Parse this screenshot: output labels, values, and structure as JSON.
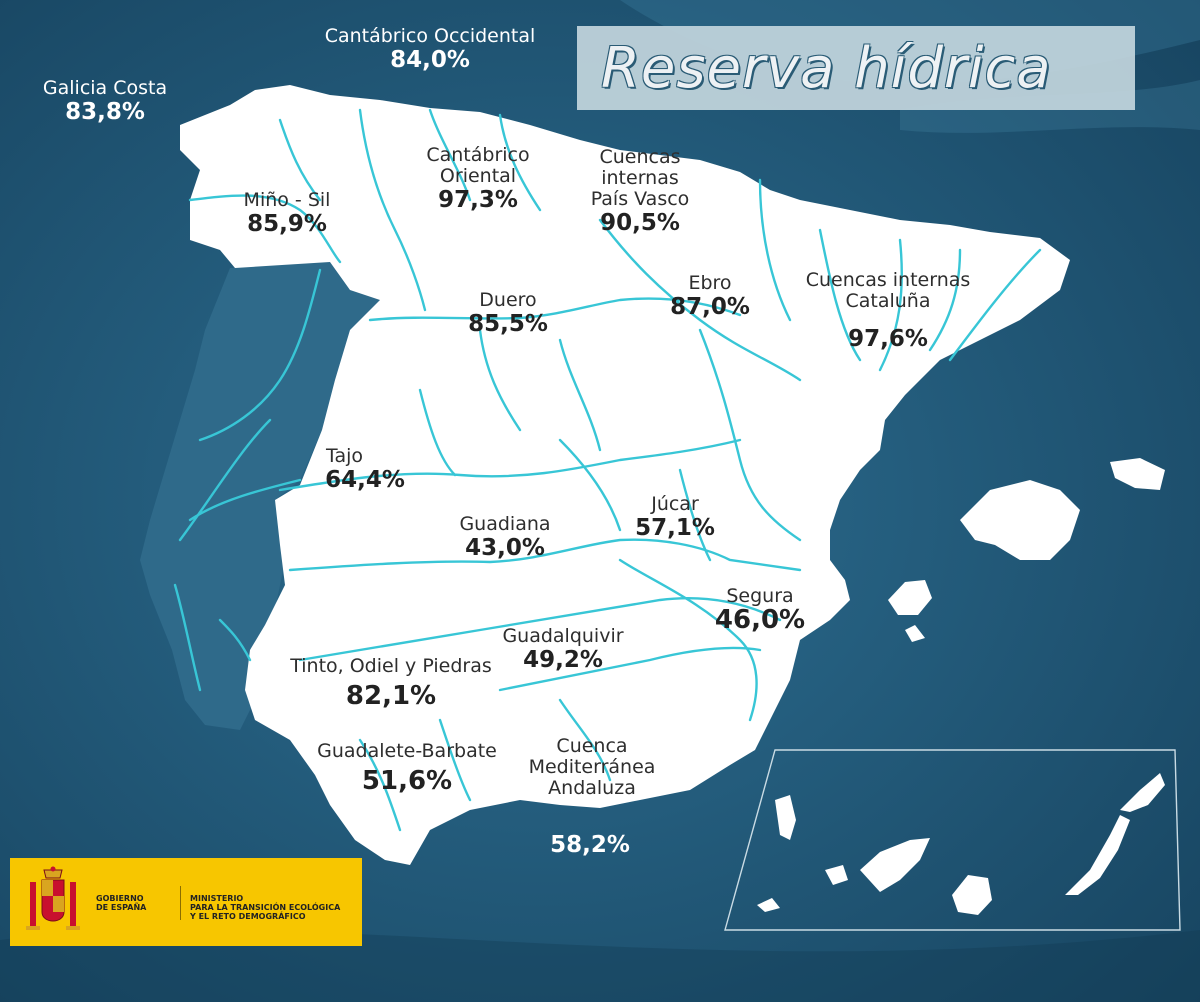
{
  "title": "Reserva hídrica",
  "colors": {
    "sea_dark": "#1d4f6e",
    "sea_mid": "#2a6a8c",
    "land": "#ffffff",
    "river": "#38c6d6",
    "portugal": "#2c6686",
    "title_box": "#c3d6de",
    "government_band": "#f7c600"
  },
  "basins": [
    {
      "name": "Galicia Costa",
      "value": "83,8%"
    },
    {
      "name": "Cantábrico Occidental",
      "value": "84,0%"
    },
    {
      "name_lines": [
        "Cantábrico",
        "Oriental"
      ],
      "value": "97,3%"
    },
    {
      "name_lines": [
        "Cuencas",
        "internas",
        "País Vasco"
      ],
      "value": "90,5%"
    },
    {
      "name": "Miño - Sil",
      "value": "85,9%"
    },
    {
      "name": "Duero",
      "value": "85,5%"
    },
    {
      "name": "Ebro",
      "value": "87,0%"
    },
    {
      "name_lines": [
        "Cuencas internas",
        "Cataluña"
      ],
      "value": "97,6%"
    },
    {
      "name": "Tajo",
      "value": "64,4%"
    },
    {
      "name": "Guadiana",
      "value": "43,0%"
    },
    {
      "name": "Júcar",
      "value": "57,1%"
    },
    {
      "name": "Segura",
      "value": "46,0%"
    },
    {
      "name": "Guadalquivir",
      "value": "49,2%"
    },
    {
      "name": "Tinto, Odiel y Piedras",
      "value": "82,1%"
    },
    {
      "name": "Guadalete-Barbate",
      "value": "51,6%"
    },
    {
      "name_lines": [
        "Cuenca",
        "Mediterránea",
        "Andaluza"
      ],
      "value": "58,2%"
    }
  ],
  "government": {
    "gobierno": [
      "GOBIERNO",
      "DE ESPAÑA"
    ],
    "ministerio": [
      "MINISTERIO",
      "PARA LA TRANSICIÓN ECOLÓGICA",
      "Y EL RETO DEMOGRÁFICO"
    ],
    "emblem_icon": "coat-of-arms-icon"
  }
}
